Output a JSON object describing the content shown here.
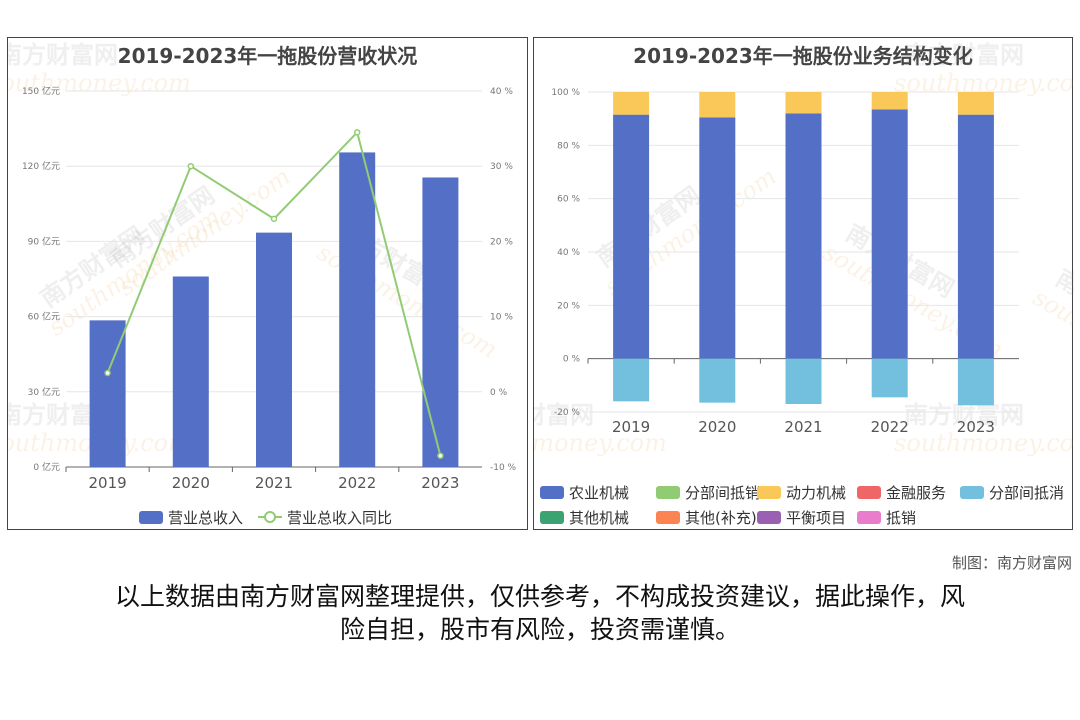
{
  "credit": "制图：南方财富网",
  "disclaimer_line1": "以上数据由南方财富网整理提供，仅供参考，不构成投资建议，据此操作，风",
  "disclaimer_line2": "险自担，股市有风险，投资需谨慎。",
  "watermark": {
    "cn": "南方财富网",
    "en": "southmoney.com"
  },
  "colors": {
    "bar_blue": "#5470c6",
    "line_green": "#91cc75",
    "yellow": "#fac858",
    "red": "#ee6666",
    "light_blue": "#73c0de",
    "dark_green": "#3ba272",
    "orange": "#fc8452",
    "purple": "#9a60b4",
    "pink": "#ea7ccc"
  },
  "chart_data": [
    {
      "type": "bar+line",
      "title": "2019-2023年一拖股份营收状况",
      "categories": [
        "2019",
        "2020",
        "2021",
        "2022",
        "2023"
      ],
      "series": [
        {
          "name": "营业总收入",
          "type": "bar",
          "axis": "left",
          "values": [
            58.5,
            76,
            93.5,
            125.5,
            115.5
          ]
        },
        {
          "name": "营业总收入同比",
          "type": "line",
          "axis": "right",
          "values": [
            2.5,
            30,
            23,
            34.5,
            -8.5
          ]
        }
      ],
      "y_left": {
        "ticks": [
          "0 亿元",
          "30 亿元",
          "60 亿元",
          "90 亿元",
          "120 亿元",
          "150 亿元"
        ],
        "ylim": [
          0,
          150
        ]
      },
      "y_right": {
        "ticks": [
          "-10 %",
          "0 %",
          "10 %",
          "20 %",
          "30 %",
          "40 %"
        ],
        "ylim": [
          -10,
          40
        ]
      },
      "legend_position": "bottom"
    },
    {
      "type": "stacked-bar",
      "title": "2019-2023年一拖股份业务结构变化",
      "categories": [
        "2019",
        "2020",
        "2021",
        "2022",
        "2023"
      ],
      "series": [
        {
          "name": "农业机械",
          "color_key": "bar_blue",
          "values": [
            91.5,
            90.5,
            92,
            93.5,
            91.5
          ]
        },
        {
          "name": "分部间抵销",
          "color_key": "line_green",
          "values": [
            0,
            0,
            0,
            0,
            0
          ]
        },
        {
          "name": "动力机械",
          "color_key": "yellow",
          "values": [
            8.5,
            9.5,
            8,
            6.5,
            8.5
          ]
        },
        {
          "name": "金融服务",
          "color_key": "red",
          "values": [
            0,
            0,
            0,
            0,
            0
          ]
        },
        {
          "name": "分部间抵消",
          "color_key": "light_blue",
          "values": [
            -16,
            -16.5,
            -17,
            -14.5,
            -17.5
          ]
        },
        {
          "name": "其他机械",
          "color_key": "dark_green",
          "values": [
            0,
            0,
            0,
            0,
            0
          ]
        },
        {
          "name": "其他(补充)",
          "color_key": "orange",
          "values": [
            0,
            0,
            0,
            0,
            0
          ]
        },
        {
          "name": "平衡项目",
          "color_key": "purple",
          "values": [
            0,
            0,
            0,
            0,
            0
          ]
        },
        {
          "name": "抵销",
          "color_key": "pink",
          "values": [
            0,
            0,
            0,
            0,
            0
          ]
        }
      ],
      "y_ticks": [
        "-20 %",
        "0 %",
        "20 %",
        "40 %",
        "60 %",
        "80 %",
        "100 %"
      ],
      "ylim": [
        -20,
        100
      ],
      "legend_position": "bottom"
    }
  ]
}
